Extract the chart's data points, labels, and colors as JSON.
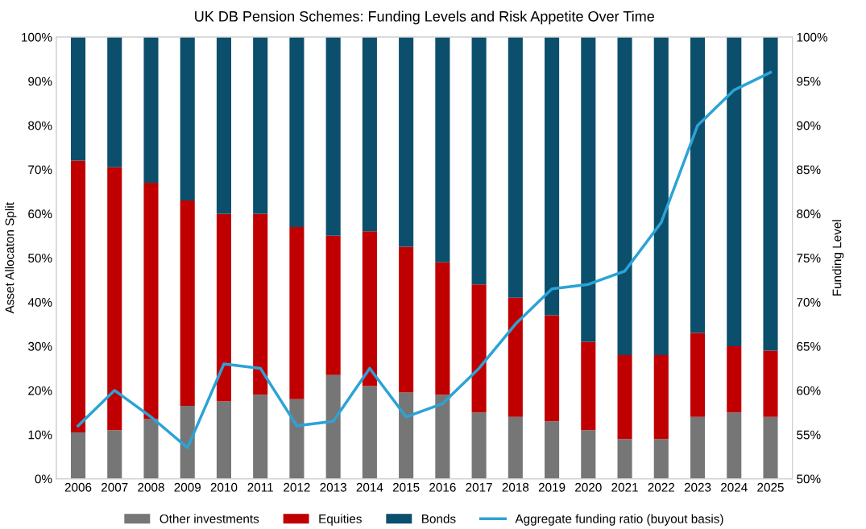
{
  "chart_data": {
    "type": "bar",
    "title": "UK DB Pension Schemes: Funding Levels and Risk Appetite Over Time",
    "ylabel": "Asset Allocaton Split",
    "y2label": "Funding Level",
    "categories": [
      "2006",
      "2007",
      "2008",
      "2009",
      "2010",
      "2011",
      "2012",
      "2013",
      "2014",
      "2015",
      "2016",
      "2017",
      "2018",
      "2019",
      "2020",
      "2021",
      "2022",
      "2023",
      "2024",
      "2025"
    ],
    "stacked": true,
    "series": [
      {
        "name": "Other investments",
        "color": "#767676",
        "values": [
          10.5,
          11,
          13.5,
          16.5,
          17.5,
          19,
          18,
          23.5,
          21,
          19.5,
          19,
          15,
          14,
          13,
          11,
          9,
          9,
          14,
          15,
          14
        ]
      },
      {
        "name": "Equities",
        "color": "#c00000",
        "values": [
          61.5,
          59.5,
          53.5,
          46.5,
          42.5,
          41,
          39,
          31.5,
          35,
          33,
          30,
          29,
          27,
          24,
          20,
          19,
          19,
          19,
          15,
          15
        ]
      },
      {
        "name": "Bonds",
        "color": "#0b4f6c",
        "values": [
          28,
          29.5,
          33,
          37,
          40,
          40,
          43,
          45,
          44,
          47.5,
          51,
          56,
          59,
          63,
          69,
          72,
          72,
          67,
          70,
          71
        ]
      },
      {
        "name": "Aggregate funding ratio (buyout basis)",
        "type": "line",
        "axis": "y2",
        "color": "#2ba3d6",
        "values": [
          56,
          60,
          57,
          53.5,
          63,
          62.5,
          56,
          56.5,
          62.5,
          57,
          58.5,
          62.5,
          67.5,
          71.5,
          72,
          73.5,
          79,
          90,
          94,
          96
        ]
      }
    ],
    "ylim": [
      0,
      100
    ],
    "yticks": [
      {
        "value": 0,
        "label": "0%"
      },
      {
        "value": 10,
        "label": "10%"
      },
      {
        "value": 20,
        "label": "20%"
      },
      {
        "value": 30,
        "label": "30%"
      },
      {
        "value": 40,
        "label": "40%"
      },
      {
        "value": 50,
        "label": "50%"
      },
      {
        "value": 60,
        "label": "60%"
      },
      {
        "value": 70,
        "label": "70%"
      },
      {
        "value": 80,
        "label": "80%"
      },
      {
        "value": 90,
        "label": "90%"
      },
      {
        "value": 100,
        "label": "100%"
      }
    ],
    "y2lim": [
      50,
      100
    ],
    "y2ticks": [
      {
        "value": 50,
        "label": "50%"
      },
      {
        "value": 55,
        "label": "55%"
      },
      {
        "value": 60,
        "label": "60%"
      },
      {
        "value": 65,
        "label": "65%"
      },
      {
        "value": 70,
        "label": "70%"
      },
      {
        "value": 75,
        "label": "75%"
      },
      {
        "value": 80,
        "label": "80%"
      },
      {
        "value": 85,
        "label": "85%"
      },
      {
        "value": 90,
        "label": "90%"
      },
      {
        "value": 95,
        "label": "95%"
      },
      {
        "value": 100,
        "label": "100%"
      }
    ],
    "grid": false,
    "legend": "bottom"
  }
}
